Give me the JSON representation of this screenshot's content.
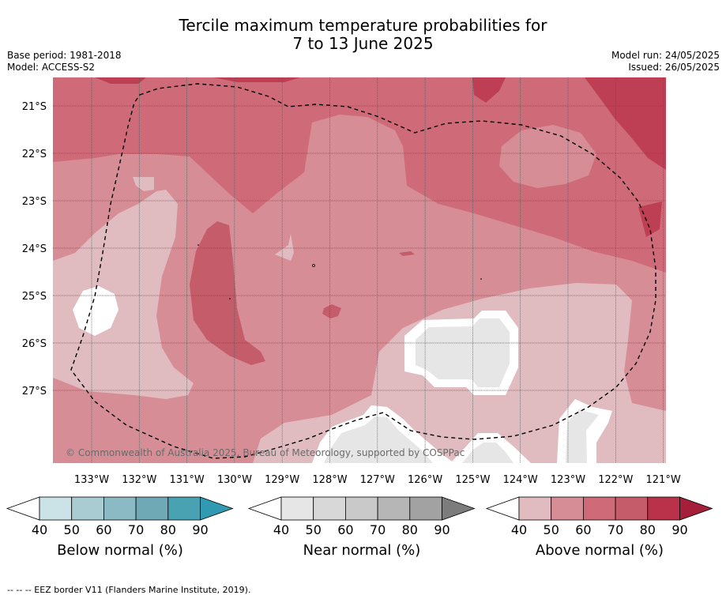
{
  "title_line1": "Tercile maximum temperature probabilities for",
  "title_line2": "7 to 13 June 2025",
  "meta_left": {
    "base_period": "Base period: 1981-2018",
    "model": "Model: ACCESS-S2"
  },
  "meta_right": {
    "model_run": "Model run: 24/05/2025",
    "issued": "Issued: 26/05/2025"
  },
  "map": {
    "lat_labels": [
      "21°S",
      "22°S",
      "23°S",
      "24°S",
      "25°S",
      "26°S",
      "27°S"
    ],
    "lon_labels": [
      "133°W",
      "132°W",
      "131°W",
      "130°W",
      "129°W",
      "128°W",
      "127°W",
      "126°W",
      "125°W",
      "124°W",
      "123°W",
      "122°W",
      "121°W"
    ],
    "copyright": "© Commonwealth of Australia 2025, Bureau of Meteorology, supported by COSPPac",
    "colors": {
      "above_50": "#d68d96",
      "above_60": "#cf6b78",
      "above_70": "#c55c6a",
      "above_80": "#be3f54",
      "above_40": "#e0bcc1",
      "near_normal": "#e6e6e6",
      "white": "#ffffff"
    }
  },
  "legends": [
    {
      "title": "Below normal (%)",
      "ticks": [
        "40",
        "50",
        "60",
        "70",
        "80",
        "90"
      ],
      "colors": [
        "#ffffff",
        "#cbe2e7",
        "#a9cbd2",
        "#8cbac4",
        "#6fa9b6",
        "#48a2b2",
        "#2f9ab1"
      ]
    },
    {
      "title": "Near normal (%)",
      "ticks": [
        "40",
        "50",
        "60",
        "70",
        "80",
        "90"
      ],
      "colors": [
        "#ffffff",
        "#e6e6e6",
        "#d8d8d8",
        "#c9c9c9",
        "#b6b6b6",
        "#a2a2a2",
        "#7c7c7c"
      ]
    },
    {
      "title": "Above normal (%)",
      "ticks": [
        "40",
        "50",
        "60",
        "70",
        "80",
        "90"
      ],
      "colors": [
        "#ffffff",
        "#e0bcc1",
        "#d68d96",
        "#cf6b78",
        "#c55c6a",
        "#b93249",
        "#a51f3b"
      ]
    }
  ],
  "footer": "--  --  -- EEZ border V11 (Flanders Marine Institute, 2019)."
}
